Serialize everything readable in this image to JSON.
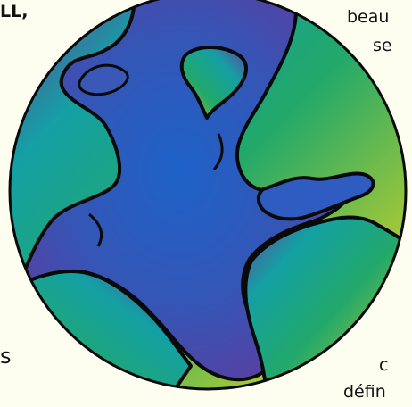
{
  "text_fragments": {
    "top_left": "LL,",
    "top_right_line1": "beau",
    "top_right_line2": "se",
    "bottom_left": "s",
    "bottom_right_line1": "c",
    "bottom_right_line2": "défin"
  },
  "illustration": {
    "subject": "globe-icon",
    "colors": {
      "ocean_center": "#1e62c8",
      "ocean_mid": "#4a4aa8",
      "land_green": "#22a86a",
      "land_yellow": "#a2c838",
      "land_teal": "#14a0a4",
      "land_purple": "#6a3c9c",
      "outline": "#0a0a0a",
      "page_background": "#fdfdf0"
    }
  }
}
